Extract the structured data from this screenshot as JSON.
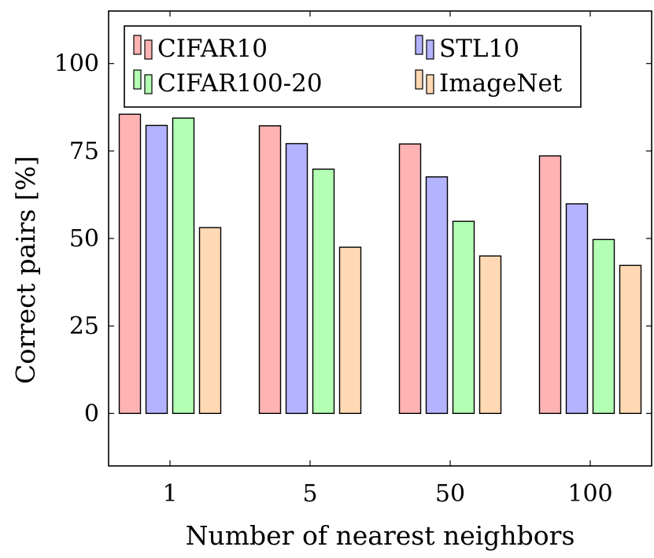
{
  "chart_data": {
    "type": "bar",
    "xlabel": "Number of nearest neighbors",
    "ylabel": "Correct pairs [%]",
    "categories": [
      "1",
      "5",
      "50",
      "100"
    ],
    "ylim": [
      -15,
      115
    ],
    "yticks": [
      0,
      25,
      50,
      75,
      100
    ],
    "grid": false,
    "legend_position": "top",
    "series": [
      {
        "name": "CIFAR10",
        "values": [
          85.5,
          82.2,
          77.0,
          73.6
        ],
        "color": "#ffb3b3"
      },
      {
        "name": "STL10",
        "values": [
          82.3,
          77.1,
          67.6,
          59.9
        ],
        "color": "#b3b3ff"
      },
      {
        "name": "CIFAR100-20",
        "values": [
          84.4,
          69.8,
          54.9,
          49.7
        ],
        "color": "#b3ffb3"
      },
      {
        "name": "ImageNet",
        "values": [
          53.1,
          47.5,
          45.0,
          42.3
        ],
        "color": "#ffd9b3"
      }
    ]
  }
}
